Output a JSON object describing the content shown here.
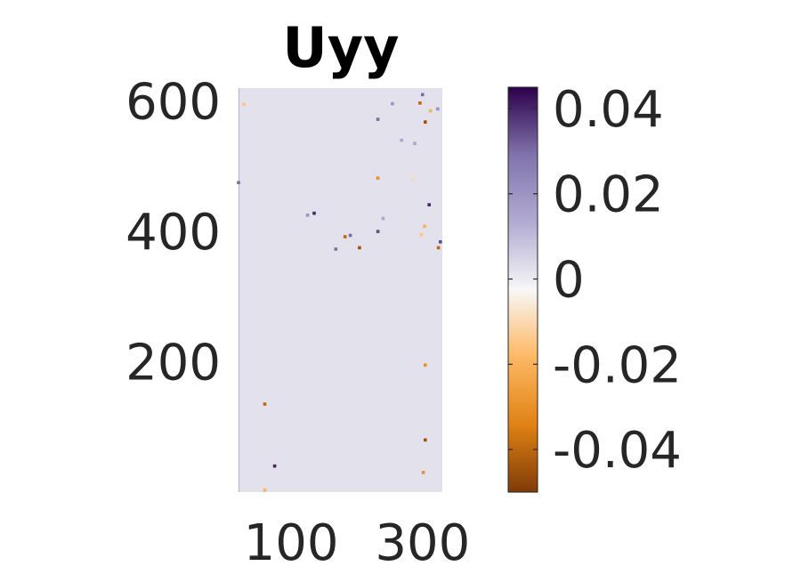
{
  "chart_data": {
    "type": "heatmap",
    "title": "Uyy",
    "xlabel": "",
    "ylabel": "",
    "x_ticks": [
      {
        "value": 100,
        "label": "100"
      },
      {
        "value": 300,
        "label": "300"
      }
    ],
    "y_ticks": [
      {
        "value": 200,
        "label": "200"
      },
      {
        "value": 400,
        "label": "400"
      },
      {
        "value": 600,
        "label": "600"
      }
    ],
    "xlim": [
      20,
      330
    ],
    "ylim": [
      0,
      620
    ],
    "colorbar": {
      "range": [
        -0.05,
        0.045
      ],
      "ticks": [
        {
          "value": 0.04,
          "label": "0.04"
        },
        {
          "value": 0.02,
          "label": "0.02"
        },
        {
          "value": 0,
          "label": "0"
        },
        {
          "value": -0.02,
          "label": "-0.02"
        },
        {
          "value": -0.04,
          "label": "-0.04"
        }
      ],
      "colors": [
        "#7f3b08",
        "#e08214",
        "#fdb863",
        "#f7f7f7",
        "#b2abd2",
        "#8073ac",
        "#2d004b"
      ]
    },
    "background_value": 0.002,
    "hotspots": [
      {
        "x": 28,
        "y": 595,
        "v": -0.015
      },
      {
        "x": 135,
        "y": 428,
        "v": 0.04
      },
      {
        "x": 125,
        "y": 425,
        "v": 0.02
      },
      {
        "x": 182,
        "y": 392,
        "v": -0.04
      },
      {
        "x": 190,
        "y": 394,
        "v": 0.03
      },
      {
        "x": 204,
        "y": 375,
        "v": -0.045
      },
      {
        "x": 232,
        "y": 400,
        "v": 0.035
      },
      {
        "x": 168,
        "y": 373,
        "v": 0.03
      },
      {
        "x": 232,
        "y": 572,
        "v": 0.03
      },
      {
        "x": 254,
        "y": 596,
        "v": 0.02
      },
      {
        "x": 296,
        "y": 597,
        "v": -0.04
      },
      {
        "x": 300,
        "y": 610,
        "v": 0.03
      },
      {
        "x": 304,
        "y": 568,
        "v": -0.045
      },
      {
        "x": 312,
        "y": 585,
        "v": -0.02
      },
      {
        "x": 323,
        "y": 588,
        "v": 0.02
      },
      {
        "x": 288,
        "y": 535,
        "v": 0.015
      },
      {
        "x": 232,
        "y": 482,
        "v": -0.03
      },
      {
        "x": 310,
        "y": 441,
        "v": 0.04
      },
      {
        "x": 303,
        "y": 408,
        "v": -0.02
      },
      {
        "x": 327,
        "y": 384,
        "v": 0.035
      },
      {
        "x": 324,
        "y": 375,
        "v": -0.04
      },
      {
        "x": 298,
        "y": 395,
        "v": -0.015
      },
      {
        "x": 304,
        "y": 195,
        "v": -0.03
      },
      {
        "x": 60,
        "y": 135,
        "v": -0.04
      },
      {
        "x": 304,
        "y": 80,
        "v": -0.045
      },
      {
        "x": 301,
        "y": 30,
        "v": -0.03
      },
      {
        "x": 75,
        "y": 40,
        "v": 0.04
      },
      {
        "x": 60,
        "y": 3,
        "v": -0.02
      },
      {
        "x": 20,
        "y": 475,
        "v": 0.03
      },
      {
        "x": 268,
        "y": 540,
        "v": 0.015
      },
      {
        "x": 285,
        "y": 480,
        "v": -0.01
      },
      {
        "x": 240,
        "y": 420,
        "v": 0.015
      }
    ]
  }
}
